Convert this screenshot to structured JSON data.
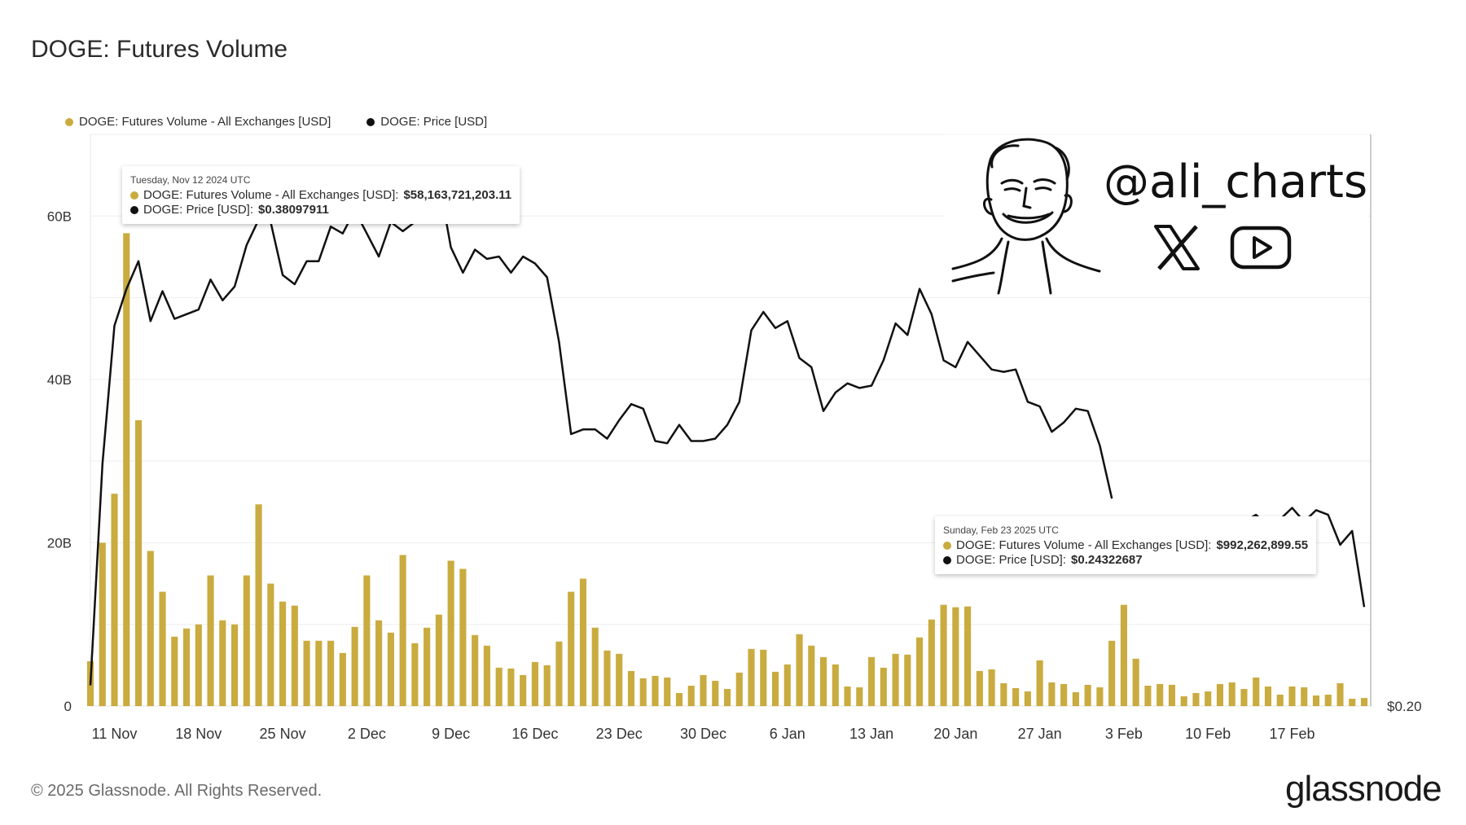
{
  "title": "DOGE: Futures Volume",
  "legend": [
    {
      "label": "DOGE: Futures Volume - All Exchanges [USD]",
      "color": "#c9ab3f"
    },
    {
      "label": "DOGE: Price [USD]",
      "color": "#111111"
    }
  ],
  "tooltip_top": {
    "date": "Tuesday, Nov 12 2024 UTC",
    "volume_label": "DOGE: Futures Volume - All Exchanges [USD]:",
    "volume_value": "$58,163,721,203.11",
    "price_label": "DOGE: Price [USD]:",
    "price_value": "$0.38097911"
  },
  "tooltip_bottom": {
    "date": "Sunday, Feb 23 2025 UTC",
    "volume_label": "DOGE: Futures Volume - All Exchanges [USD]:",
    "volume_value": "$992,262,899.55",
    "price_label": "DOGE: Price [USD]:",
    "price_value": "$0.24322687"
  },
  "watermark": {
    "handle": "@ali_charts",
    "icons": [
      "avatar-caricature-icon",
      "x-logo-icon",
      "youtube-icon"
    ]
  },
  "footer": "© 2025 Glassnode. All Rights Reserved.",
  "brand": "glassnode",
  "chart_data": {
    "type": "bar",
    "title": "DOGE: Futures Volume",
    "x_tick_labels": [
      "11 Nov",
      "18 Nov",
      "25 Nov",
      "2 Dec",
      "9 Dec",
      "16 Dec",
      "23 Dec",
      "30 Dec",
      "6 Jan",
      "13 Jan",
      "20 Jan",
      "27 Jan",
      "3 Feb",
      "10 Feb",
      "17 Feb"
    ],
    "y_tick_labels": [
      "0",
      "20B",
      "40B",
      "60B"
    ],
    "y_ticks": [
      0,
      20,
      40,
      60
    ],
    "ylim": [
      0,
      70
    ],
    "y_unit": "B USD",
    "right_axis_label": "$0.20",
    "grid": true,
    "legend_position": "top-left",
    "series": [
      {
        "name": "DOGE: Futures Volume - All Exchanges [USD]",
        "color": "#c9ab3f",
        "kind": "bar",
        "axis": "left",
        "values": [
          5.5,
          20,
          26,
          57.9,
          35,
          19,
          14,
          8.5,
          9.5,
          10,
          16,
          10.5,
          10,
          16,
          24.7,
          15,
          12.8,
          12.3,
          8,
          8,
          8,
          6.5,
          9.7,
          16,
          10.5,
          9,
          18.5,
          7.7,
          9.6,
          11.2,
          17.8,
          16.8,
          8.7,
          7.4,
          4.7,
          4.6,
          3.8,
          5.4,
          5,
          7.9,
          14,
          15.6,
          9.6,
          6.8,
          6.4,
          4.3,
          3.4,
          3.7,
          3.5,
          1.6,
          2.5,
          3.8,
          3.1,
          2.1,
          4.1,
          7,
          6.9,
          4.2,
          5.1,
          8.8,
          7.4,
          6,
          5.1,
          2.4,
          2.3,
          6,
          4.7,
          6.4,
          6.3,
          8.4,
          10.6,
          12.4,
          12.1,
          12.2,
          4.3,
          4.5,
          2.8,
          2.2,
          1.8,
          5.6,
          2.9,
          2.7,
          1.7,
          2.6,
          2.3,
          8,
          12.4,
          5.8,
          2.5,
          2.7,
          2.6,
          1.2,
          1.6,
          1.8,
          2.7,
          2.9,
          2.1,
          3.5,
          2.4,
          1.4,
          2.4,
          2.3,
          1.3,
          1.4,
          2.8,
          0.9,
          0.99
        ]
      },
      {
        "name": "DOGE: Price [USD]",
        "color": "#111111",
        "kind": "line",
        "axis": "right",
        "note": "gap between 31 Jan and 6 Feb hidden behind tooltip",
        "values": [
          0.209,
          0.305,
          0.365,
          0.381,
          0.393,
          0.367,
          0.38,
          0.368,
          0.37,
          0.372,
          0.385,
          0.376,
          0.382,
          0.4,
          0.411,
          0.41,
          0.387,
          0.383,
          0.393,
          0.393,
          0.408,
          0.405,
          0.415,
          0.405,
          0.395,
          0.41,
          0.406,
          0.41,
          0.421,
          0.428,
          0.399,
          0.388,
          0.398,
          0.394,
          0.395,
          0.388,
          0.395,
          0.392,
          0.386,
          0.358,
          0.318,
          0.32,
          0.32,
          0.316,
          0.324,
          0.331,
          0.329,
          0.315,
          0.314,
          0.322,
          0.315,
          0.315,
          0.316,
          0.322,
          0.332,
          0.363,
          0.371,
          0.364,
          0.367,
          0.351,
          0.347,
          0.328,
          0.336,
          0.34,
          0.338,
          0.339,
          0.35,
          0.366,
          0.361,
          0.381,
          0.37,
          0.35,
          0.347,
          0.358,
          0.352,
          0.346,
          0.345,
          0.346,
          0.332,
          0.33,
          0.319,
          0.323,
          0.329,
          0.328,
          0.313,
          0.29,
          null,
          null,
          null,
          null,
          null,
          0.278,
          0.272,
          0.271,
          0.277,
          0.275,
          0.28,
          0.283,
          0.278,
          0.281,
          0.286,
          0.28,
          0.285,
          0.283,
          0.27,
          0.276,
          0.243
        ]
      }
    ]
  }
}
